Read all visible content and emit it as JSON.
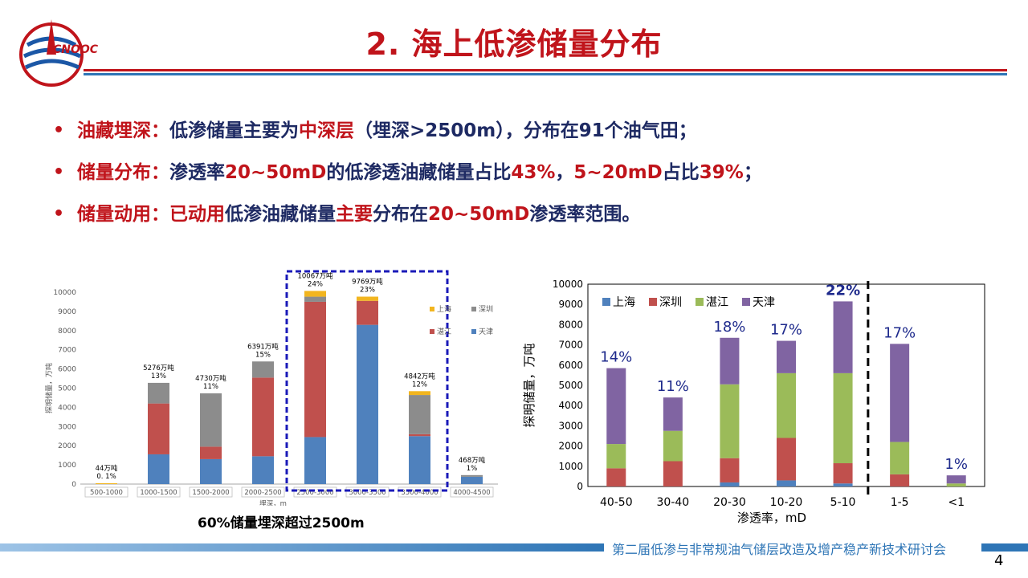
{
  "title": "2. 海上低渗储量分布",
  "logo": {
    "text": "CNOOC"
  },
  "bullets": [
    {
      "segments": [
        {
          "text": "油藏埋深：",
          "color": "red"
        },
        {
          "text": "低渗储量主要为",
          "color": "navy"
        },
        {
          "text": "中深层",
          "color": "red"
        },
        {
          "text": "（埋深>2500m），分布在91个油气田；",
          "color": "navy"
        }
      ]
    },
    {
      "segments": [
        {
          "text": "储量分布：",
          "color": "red"
        },
        {
          "text": "渗透率",
          "color": "navy"
        },
        {
          "text": "20~50mD",
          "color": "red"
        },
        {
          "text": "的低渗透油藏储量占比",
          "color": "navy"
        },
        {
          "text": "43%",
          "color": "red"
        },
        {
          "text": "，",
          "color": "navy"
        },
        {
          "text": "5~20mD",
          "color": "red"
        },
        {
          "text": "占比",
          "color": "navy"
        },
        {
          "text": "39%",
          "color": "red"
        },
        {
          "text": "；",
          "color": "navy"
        }
      ]
    },
    {
      "segments": [
        {
          "text": "储量动用：",
          "color": "red"
        },
        {
          "text": "已动用",
          "color": "red"
        },
        {
          "text": "低渗油藏储量",
          "color": "navy"
        },
        {
          "text": "主要",
          "color": "red"
        },
        {
          "text": "分布在",
          "color": "navy"
        },
        {
          "text": "20~50mD",
          "color": "red"
        },
        {
          "text": "渗透率范围。",
          "color": "navy"
        }
      ]
    }
  ],
  "chart_caption": "60%储量埋深超过2500m",
  "footer_text": "第二届低渗与非常规油气储层改造及增产稳产新技术研讨会",
  "page_number": "4",
  "colors": {
    "title_red": "#c0141b",
    "text_navy": "#1e2a63",
    "footer_blue": "#2e75b6",
    "highlight_box": "#1a1ab8",
    "left_series": {
      "上海": "#f2b51f",
      "深圳": "#8c8c8c",
      "湛江": "#c0504d",
      "天津": "#4f81bd"
    },
    "right_series": {
      "上海": "#4f81bd",
      "深圳": "#c0504d",
      "湛江": "#9bbb59",
      "天津": "#8064a2"
    }
  },
  "chart_data": [
    {
      "type": "bar",
      "stacked": true,
      "ylabel": "探明储量，万吨",
      "xlabel": "埋深，m",
      "ylim": [
        0,
        10000
      ],
      "yticks": [
        0,
        1000,
        2000,
        3000,
        4000,
        5000,
        6000,
        7000,
        8000,
        9000,
        10000
      ],
      "legend_position": "right",
      "categories": [
        "500-1000",
        "1000-1500",
        "1500-2000",
        "2000-2500",
        "2500-3000",
        "3000-3500",
        "3500-4000",
        "4000-4500"
      ],
      "series": [
        {
          "name": "天津",
          "values": [
            0,
            1550,
            1300,
            1450,
            2450,
            8300,
            2500,
            380
          ]
        },
        {
          "name": "湛江",
          "values": [
            0,
            2650,
            650,
            4100,
            7050,
            1250,
            100,
            0
          ]
        },
        {
          "name": "深圳",
          "values": [
            0,
            1076,
            2780,
            841,
            267,
            0,
            2042,
            88
          ]
        },
        {
          "name": "上海",
          "values": [
            44,
            0,
            0,
            0,
            300,
            219,
            200,
            0
          ]
        }
      ],
      "legend_order": [
        "上海",
        "深圳",
        "湛江",
        "天津"
      ],
      "totals": [
        44,
        5276,
        4730,
        6391,
        10067,
        9769,
        4842,
        468
      ],
      "data_labels": [
        {
          "amount": "44万吨",
          "pct": "0. 1%"
        },
        {
          "amount": "5276万吨",
          "pct": "13%"
        },
        {
          "amount": "4730万吨",
          "pct": "11%"
        },
        {
          "amount": "6391万吨",
          "pct": "15%"
        },
        {
          "amount": "10067万吨",
          "pct": "24%"
        },
        {
          "amount": "9769万吨",
          "pct": "23%"
        },
        {
          "amount": "4842万吨",
          "pct": "12%"
        },
        {
          "amount": "468万吨",
          "pct": "1%"
        }
      ],
      "highlight_range": [
        "2500-3000",
        "3500-4000"
      ]
    },
    {
      "type": "bar",
      "stacked": true,
      "ylabel": "探明储量，万吨",
      "xlabel": "渗透率，mD",
      "ylim": [
        0,
        10000
      ],
      "yticks": [
        0,
        1000,
        2000,
        3000,
        4000,
        5000,
        6000,
        7000,
        8000,
        9000,
        10000
      ],
      "legend_position": "top-left",
      "categories": [
        "40-50",
        "30-40",
        "20-30",
        "10-20",
        "5-10",
        "1-5",
        "<1"
      ],
      "series": [
        {
          "name": "上海",
          "values": [
            0,
            0,
            200,
            300,
            150,
            0,
            0
          ]
        },
        {
          "name": "深圳",
          "values": [
            900,
            1250,
            1200,
            2100,
            1000,
            600,
            0
          ]
        },
        {
          "name": "湛江",
          "values": [
            1200,
            1500,
            3650,
            3200,
            4450,
            1600,
            150
          ]
        },
        {
          "name": "天津",
          "values": [
            3750,
            1650,
            2300,
            1600,
            3550,
            4850,
            400
          ]
        }
      ],
      "legend_order": [
        "上海",
        "深圳",
        "湛江",
        "天津"
      ],
      "percent_labels": [
        "14%",
        "11%",
        "18%",
        "17%",
        "22%",
        "17%",
        "1%"
      ],
      "divider_after": "5-10"
    }
  ]
}
